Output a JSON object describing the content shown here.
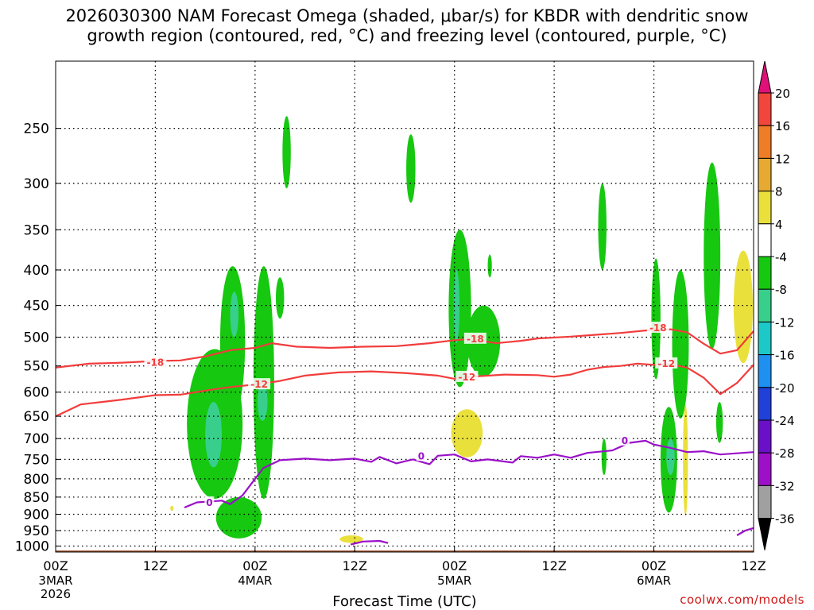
{
  "title": {
    "line1": "2026030300 NAM Forecast Omega (shaded, μbar/s) for KBDR with dendritic snow",
    "line2": "growth region (contoured, red, °C) and freezing level (contoured, purple, °C)"
  },
  "watermark": "coolwx.com/models",
  "chart_data": {
    "type": "contour",
    "title": "2026030300 NAM Forecast Omega (shaded, μbar/s) for KBDR with dendritic snow growth region (contoured, red, °C) and freezing level (contoured, purple, °C)",
    "xlabel": "Forecast Time (UTC)",
    "ylabel": "",
    "xlim_hours": [
      0,
      84
    ],
    "ylim_hpa": [
      1020,
      200
    ],
    "y_scale": "log-pressure",
    "x_ticks": [
      {
        "hour": 0,
        "label": "00Z",
        "sub": [
          "3MAR",
          "2026"
        ]
      },
      {
        "hour": 12,
        "label": "12Z",
        "sub": []
      },
      {
        "hour": 24,
        "label": "00Z",
        "sub": [
          "4MAR"
        ]
      },
      {
        "hour": 36,
        "label": "12Z",
        "sub": []
      },
      {
        "hour": 48,
        "label": "00Z",
        "sub": [
          "5MAR"
        ]
      },
      {
        "hour": 60,
        "label": "12Z",
        "sub": []
      },
      {
        "hour": 72,
        "label": "00Z",
        "sub": [
          "6MAR"
        ]
      },
      {
        "hour": 84,
        "label": "12Z",
        "sub": []
      }
    ],
    "y_ticks": [
      250,
      300,
      350,
      400,
      450,
      500,
      550,
      600,
      650,
      700,
      750,
      800,
      850,
      900,
      950,
      1000
    ],
    "colorbar": {
      "labels": [
        "20",
        "16",
        "12",
        "8",
        "4",
        "-4",
        "-8",
        "-12",
        "-16",
        "-20",
        "-24",
        "-28",
        "-32",
        "-36"
      ],
      "colors": [
        "#e0107a",
        "#f2463c",
        "#ef7d25",
        "#e6a932",
        "#eae03c",
        "#ffffff",
        "#16c80f",
        "#38cf8c",
        "#1dc8c8",
        "#1e90f0",
        "#2040d8",
        "#6a10c8",
        "#9e10c8",
        "#a0a0a0",
        "#000000"
      ]
    },
    "series": [
      {
        "name": "freezing level 0°C",
        "color": "#9a10c8",
        "points": [
          [
            15.5,
            880
          ],
          [
            17,
            865
          ],
          [
            20,
            860
          ],
          [
            21,
            870
          ],
          [
            22.5,
            845
          ],
          [
            24,
            800
          ],
          [
            25,
            772
          ],
          [
            27,
            752
          ],
          [
            30,
            748
          ],
          [
            33,
            752
          ],
          [
            36,
            748
          ],
          [
            38,
            756
          ],
          [
            39,
            744
          ],
          [
            41,
            760
          ],
          [
            43,
            750
          ],
          [
            45,
            762
          ],
          [
            46,
            741
          ],
          [
            48,
            738
          ],
          [
            50,
            755
          ],
          [
            52,
            750
          ],
          [
            55,
            758
          ],
          [
            56,
            742
          ],
          [
            58,
            746
          ],
          [
            60,
            738
          ],
          [
            62,
            746
          ],
          [
            64,
            734
          ],
          [
            67,
            728
          ],
          [
            69,
            710
          ],
          [
            71,
            705
          ],
          [
            72,
            714
          ],
          [
            74,
            722
          ],
          [
            76,
            732
          ],
          [
            78,
            730
          ],
          [
            80,
            738
          ],
          [
            82,
            735
          ],
          [
            84,
            732
          ]
        ],
        "labels": [
          {
            "hour": 18.5,
            "hpa": 866,
            "text": "0"
          },
          {
            "hour": 44,
            "hpa": 742,
            "text": "0"
          },
          {
            "hour": 68.5,
            "hpa": 705,
            "text": "0"
          }
        ]
      },
      {
        "name": "freezing level 0°C (surface pockets)",
        "color": "#9a10c8",
        "points": [
          [
            35.5,
            995
          ],
          [
            37,
            985
          ],
          [
            39,
            983
          ],
          [
            40,
            990
          ]
        ],
        "labels": []
      },
      {
        "name": "freezing level 0°C (east)",
        "color": "#9a10c8",
        "points": [
          [
            82,
            965
          ],
          [
            83,
            950
          ],
          [
            84,
            942
          ]
        ],
        "labels": []
      },
      {
        "name": "-12°C isotherm",
        "color": "#f23c3c",
        "points": [
          [
            0,
            650
          ],
          [
            3,
            625
          ],
          [
            8,
            615
          ],
          [
            12,
            606
          ],
          [
            15,
            605
          ],
          [
            18,
            597
          ],
          [
            21,
            590
          ],
          [
            24,
            585
          ],
          [
            27,
            578
          ],
          [
            30,
            568
          ],
          [
            34,
            562
          ],
          [
            38,
            560
          ],
          [
            42,
            563
          ],
          [
            46,
            568
          ],
          [
            48,
            574
          ],
          [
            50,
            570
          ],
          [
            54,
            566
          ],
          [
            58,
            567
          ],
          [
            60,
            570
          ],
          [
            62,
            566
          ],
          [
            64,
            557
          ],
          [
            66,
            552
          ],
          [
            68,
            550
          ],
          [
            70,
            546
          ],
          [
            72,
            548
          ],
          [
            74,
            547
          ],
          [
            76,
            553
          ],
          [
            78,
            572
          ],
          [
            80,
            604
          ],
          [
            82,
            582
          ],
          [
            84,
            548
          ]
        ],
        "labels": [
          {
            "hour": 24.5,
            "hpa": 585,
            "text": "-12"
          },
          {
            "hour": 49.5,
            "hpa": 571,
            "text": "-12"
          },
          {
            "hour": 73.5,
            "hpa": 546,
            "text": "-12"
          }
        ]
      },
      {
        "name": "-18°C isotherm",
        "color": "#f23c3c",
        "points": [
          [
            0,
            553
          ],
          [
            4,
            546
          ],
          [
            8,
            544
          ],
          [
            12,
            541
          ],
          [
            15,
            540
          ],
          [
            18,
            533
          ],
          [
            21,
            522
          ],
          [
            24,
            518
          ],
          [
            26,
            510
          ],
          [
            29,
            516
          ],
          [
            33,
            518
          ],
          [
            37,
            516
          ],
          [
            41,
            515
          ],
          [
            45,
            510
          ],
          [
            48,
            505
          ],
          [
            50,
            503
          ],
          [
            53,
            510
          ],
          [
            56,
            506
          ],
          [
            58,
            502
          ],
          [
            62,
            499
          ],
          [
            65,
            496
          ],
          [
            68,
            493
          ],
          [
            71,
            489
          ],
          [
            74,
            487
          ],
          [
            76,
            492
          ],
          [
            78,
            511
          ],
          [
            80,
            528
          ],
          [
            82,
            522
          ],
          [
            84,
            490
          ]
        ],
        "labels": [
          {
            "hour": 12,
            "hpa": 544,
            "text": "-18"
          },
          {
            "hour": 50.5,
            "hpa": 503,
            "text": "-18"
          },
          {
            "hour": 72.5,
            "hpa": 485,
            "text": "-18"
          }
        ]
      }
    ],
    "shaded_regions": [
      {
        "value": -6,
        "color": "#16c80f",
        "hour": [
          15.8,
          22.5
        ],
        "hpa": [
          520,
          855
        ]
      },
      {
        "value": -6,
        "color": "#16c80f",
        "hour": [
          19.8,
          22.8
        ],
        "hpa": [
          395,
          650
        ]
      },
      {
        "value": -6,
        "color": "#16c80f",
        "hour": [
          23.8,
          26.3
        ],
        "hpa": [
          395,
          855
        ]
      },
      {
        "value": -6,
        "color": "#16c80f",
        "hour": [
          19.3,
          24.8
        ],
        "hpa": [
          850,
          975
        ]
      },
      {
        "value": -6,
        "color": "#16c80f",
        "hour": [
          26.5,
          27.5
        ],
        "hpa": [
          410,
          470
        ]
      },
      {
        "value": -6,
        "color": "#16c80f",
        "hour": [
          27.3,
          28.3
        ],
        "hpa": [
          240,
          305
        ]
      },
      {
        "value": -6,
        "color": "#16c80f",
        "hour": [
          42.2,
          43.3
        ],
        "hpa": [
          255,
          320
        ]
      },
      {
        "value": -6,
        "color": "#16c80f",
        "hour": [
          47.3,
          50
        ],
        "hpa": [
          350,
          590
        ]
      },
      {
        "value": -6,
        "color": "#16c80f",
        "hour": [
          49.5,
          53.5
        ],
        "hpa": [
          450,
          570
        ]
      },
      {
        "value": -6,
        "color": "#16c80f",
        "hour": [
          52,
          52.5
        ],
        "hpa": [
          380,
          410
        ]
      },
      {
        "value": -6,
        "color": "#16c80f",
        "hour": [
          65.3,
          66.3
        ],
        "hpa": [
          300,
          400
        ]
      },
      {
        "value": -6,
        "color": "#16c80f",
        "hour": [
          65.7,
          66.3
        ],
        "hpa": [
          700,
          790
        ]
      },
      {
        "value": -6,
        "color": "#16c80f",
        "hour": [
          71.7,
          72.8
        ],
        "hpa": [
          385,
          575
        ]
      },
      {
        "value": -6,
        "color": "#16c80f",
        "hour": [
          74.2,
          76.2
        ],
        "hpa": [
          400,
          655
        ]
      },
      {
        "value": -6,
        "color": "#16c80f",
        "hour": [
          72.8,
          74.8
        ],
        "hpa": [
          630,
          895
        ]
      },
      {
        "value": -6,
        "color": "#16c80f",
        "hour": [
          78,
          80
        ],
        "hpa": [
          280,
          520
        ]
      },
      {
        "value": -6,
        "color": "#16c80f",
        "hour": [
          79.5,
          80.3
        ],
        "hpa": [
          620,
          710
        ]
      },
      {
        "value": -10,
        "color": "#38cf8c",
        "hour": [
          18,
          20
        ],
        "hpa": [
          620,
          770
        ]
      },
      {
        "value": -10,
        "color": "#38cf8c",
        "hour": [
          21,
          22
        ],
        "hpa": [
          430,
          500
        ]
      },
      {
        "value": -10,
        "color": "#38cf8c",
        "hour": [
          24.3,
          25.5
        ],
        "hpa": [
          580,
          660
        ]
      },
      {
        "value": -10,
        "color": "#38cf8c",
        "hour": [
          47.9,
          48.6
        ],
        "hpa": [
          400,
          510
        ]
      },
      {
        "value": -10,
        "color": "#38cf8c",
        "hour": [
          73.5,
          74.5
        ],
        "hpa": [
          700,
          790
        ]
      },
      {
        "value": 6,
        "color": "#eae03c",
        "hour": [
          47.6,
          51.4
        ],
        "hpa": [
          635,
          745
        ]
      },
      {
        "value": 6,
        "color": "#eae03c",
        "hour": [
          81.6,
          83.9
        ],
        "hpa": [
          375,
          545
        ]
      },
      {
        "value": 6,
        "color": "#eae03c",
        "hour": [
          75.5,
          76.1
        ],
        "hpa": [
          625,
          905
        ]
      },
      {
        "value": 6,
        "color": "#eae03c",
        "hour": [
          34.2,
          37
        ],
        "hpa": [
          965,
          990
        ]
      },
      {
        "value": 6,
        "color": "#eae03c",
        "hour": [
          13.8,
          14.2
        ],
        "hpa": [
          875,
          890
        ]
      }
    ],
    "terrain": {
      "color": "#a0522d",
      "surface_hpa": 1015
    }
  }
}
